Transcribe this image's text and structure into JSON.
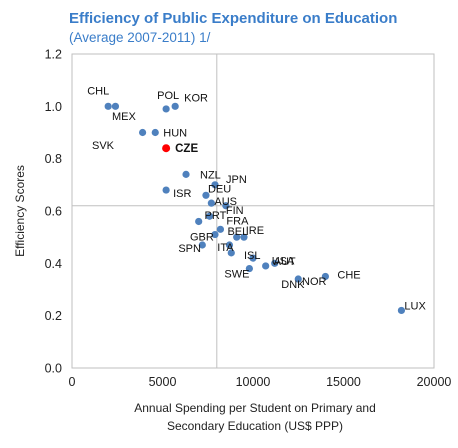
{
  "chart_data": {
    "type": "scatter",
    "title": "Efficiency of Public Expenditure on Education",
    "subtitle": "(Average 2007-2011) 1/",
    "xlabel_line1": "Annual  Spending per Student on Primary and",
    "xlabel_line2": "Secondary Education  (US$ PPP)",
    "ylabel": "Efficiency Scores",
    "xlim": [
      0,
      20000
    ],
    "ylim": [
      0.0,
      1.2
    ],
    "xticks": [
      "0",
      "5000",
      "10000",
      "15000",
      "20000"
    ],
    "yticks": [
      "0.0",
      "0.2",
      "0.4",
      "0.6",
      "0.8",
      "1.0",
      "1.2"
    ],
    "reference_lines": {
      "x": 8000,
      "y": 0.62
    },
    "colors": {
      "point": "#4f81bd",
      "highlight": "#ff0000",
      "refline": "#c0c0c0"
    },
    "points": [
      {
        "x": 2000,
        "y": 1.0,
        "label": "CHL"
      },
      {
        "x": 2400,
        "y": 1.0,
        "label": "",
        "note": "MEX-side point"
      },
      {
        "x": 5200,
        "y": 0.99,
        "label": "POL"
      },
      {
        "x": 5700,
        "y": 1.0,
        "label": "KOR"
      },
      {
        "x": 3900,
        "y": 0.9,
        "label": "",
        "note": "SVK"
      },
      {
        "x": 4600,
        "y": 0.9,
        "label": "HUN"
      },
      {
        "x": 5200,
        "y": 0.84,
        "label": "CZE",
        "highlight": true
      },
      {
        "x": 6300,
        "y": 0.74,
        "label": "NZL"
      },
      {
        "x": 7900,
        "y": 0.7,
        "label": "JPN"
      },
      {
        "x": 5200,
        "y": 0.68,
        "label": "ISR"
      },
      {
        "x": 7400,
        "y": 0.66,
        "label": "DEU"
      },
      {
        "x": 7700,
        "y": 0.63,
        "label": "AUS"
      },
      {
        "x": 8500,
        "y": 0.62,
        "label": "FIN"
      },
      {
        "x": 7000,
        "y": 0.56,
        "label": ""
      },
      {
        "x": 7600,
        "y": 0.58,
        "label": "PRT"
      },
      {
        "x": 8200,
        "y": 0.53,
        "label": "FRA"
      },
      {
        "x": 7900,
        "y": 0.51,
        "label": "GBR"
      },
      {
        "x": 9100,
        "y": 0.5,
        "label": "IRE"
      },
      {
        "x": 9500,
        "y": 0.5,
        "label": ""
      },
      {
        "x": 8700,
        "y": 0.47,
        "label": "BEL"
      },
      {
        "x": 7200,
        "y": 0.47,
        "label": "SPN"
      },
      {
        "x": 8800,
        "y": 0.44,
        "label": "ITA"
      },
      {
        "x": 10000,
        "y": 0.42,
        "label": "ISL"
      },
      {
        "x": 10700,
        "y": 0.39,
        "label": "AUT"
      },
      {
        "x": 9800,
        "y": 0.38,
        "label": "SWE"
      },
      {
        "x": 11200,
        "y": 0.4,
        "label": "USA"
      },
      {
        "x": 12500,
        "y": 0.34,
        "label": "DNK"
      },
      {
        "x": 14000,
        "y": 0.35,
        "label": "CHE"
      },
      {
        "x": 18200,
        "y": 0.22,
        "label": "LUX"
      }
    ],
    "extra_labels": [
      "MEX",
      "SVK",
      "NOR"
    ]
  }
}
